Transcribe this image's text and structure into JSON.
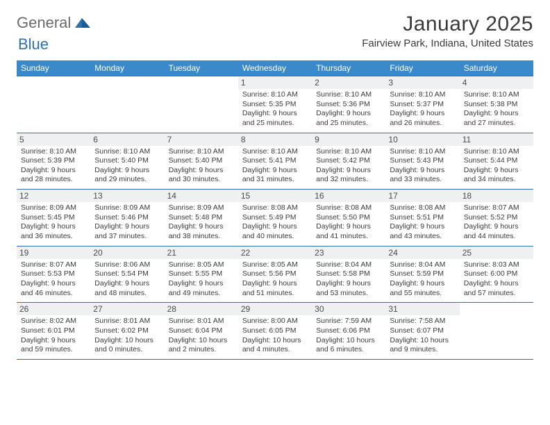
{
  "logo": {
    "text_general": "General",
    "text_blue": "Blue"
  },
  "title": "January 2025",
  "location": "Fairview Park, Indiana, United States",
  "colors": {
    "header_bg": "#3a8acb",
    "header_text": "#ffffff",
    "daynum_bg": "#eef0f2",
    "border": "#2f6fb3",
    "body_text": "#3a3a3a",
    "logo_gray": "#6b6b6b",
    "logo_blue": "#2f6fb3"
  },
  "weekdays": [
    "Sunday",
    "Monday",
    "Tuesday",
    "Wednesday",
    "Thursday",
    "Friday",
    "Saturday"
  ],
  "weeks": [
    [
      null,
      null,
      null,
      {
        "n": "1",
        "sr": "8:10 AM",
        "ss": "5:35 PM",
        "dl": "9 hours and 25 minutes."
      },
      {
        "n": "2",
        "sr": "8:10 AM",
        "ss": "5:36 PM",
        "dl": "9 hours and 25 minutes."
      },
      {
        "n": "3",
        "sr": "8:10 AM",
        "ss": "5:37 PM",
        "dl": "9 hours and 26 minutes."
      },
      {
        "n": "4",
        "sr": "8:10 AM",
        "ss": "5:38 PM",
        "dl": "9 hours and 27 minutes."
      }
    ],
    [
      {
        "n": "5",
        "sr": "8:10 AM",
        "ss": "5:39 PM",
        "dl": "9 hours and 28 minutes."
      },
      {
        "n": "6",
        "sr": "8:10 AM",
        "ss": "5:40 PM",
        "dl": "9 hours and 29 minutes."
      },
      {
        "n": "7",
        "sr": "8:10 AM",
        "ss": "5:40 PM",
        "dl": "9 hours and 30 minutes."
      },
      {
        "n": "8",
        "sr": "8:10 AM",
        "ss": "5:41 PM",
        "dl": "9 hours and 31 minutes."
      },
      {
        "n": "9",
        "sr": "8:10 AM",
        "ss": "5:42 PM",
        "dl": "9 hours and 32 minutes."
      },
      {
        "n": "10",
        "sr": "8:10 AM",
        "ss": "5:43 PM",
        "dl": "9 hours and 33 minutes."
      },
      {
        "n": "11",
        "sr": "8:10 AM",
        "ss": "5:44 PM",
        "dl": "9 hours and 34 minutes."
      }
    ],
    [
      {
        "n": "12",
        "sr": "8:09 AM",
        "ss": "5:45 PM",
        "dl": "9 hours and 36 minutes."
      },
      {
        "n": "13",
        "sr": "8:09 AM",
        "ss": "5:46 PM",
        "dl": "9 hours and 37 minutes."
      },
      {
        "n": "14",
        "sr": "8:09 AM",
        "ss": "5:48 PM",
        "dl": "9 hours and 38 minutes."
      },
      {
        "n": "15",
        "sr": "8:08 AM",
        "ss": "5:49 PM",
        "dl": "9 hours and 40 minutes."
      },
      {
        "n": "16",
        "sr": "8:08 AM",
        "ss": "5:50 PM",
        "dl": "9 hours and 41 minutes."
      },
      {
        "n": "17",
        "sr": "8:08 AM",
        "ss": "5:51 PM",
        "dl": "9 hours and 43 minutes."
      },
      {
        "n": "18",
        "sr": "8:07 AM",
        "ss": "5:52 PM",
        "dl": "9 hours and 44 minutes."
      }
    ],
    [
      {
        "n": "19",
        "sr": "8:07 AM",
        "ss": "5:53 PM",
        "dl": "9 hours and 46 minutes."
      },
      {
        "n": "20",
        "sr": "8:06 AM",
        "ss": "5:54 PM",
        "dl": "9 hours and 48 minutes."
      },
      {
        "n": "21",
        "sr": "8:05 AM",
        "ss": "5:55 PM",
        "dl": "9 hours and 49 minutes."
      },
      {
        "n": "22",
        "sr": "8:05 AM",
        "ss": "5:56 PM",
        "dl": "9 hours and 51 minutes."
      },
      {
        "n": "23",
        "sr": "8:04 AM",
        "ss": "5:58 PM",
        "dl": "9 hours and 53 minutes."
      },
      {
        "n": "24",
        "sr": "8:04 AM",
        "ss": "5:59 PM",
        "dl": "9 hours and 55 minutes."
      },
      {
        "n": "25",
        "sr": "8:03 AM",
        "ss": "6:00 PM",
        "dl": "9 hours and 57 minutes."
      }
    ],
    [
      {
        "n": "26",
        "sr": "8:02 AM",
        "ss": "6:01 PM",
        "dl": "9 hours and 59 minutes."
      },
      {
        "n": "27",
        "sr": "8:01 AM",
        "ss": "6:02 PM",
        "dl": "10 hours and 0 minutes."
      },
      {
        "n": "28",
        "sr": "8:01 AM",
        "ss": "6:04 PM",
        "dl": "10 hours and 2 minutes."
      },
      {
        "n": "29",
        "sr": "8:00 AM",
        "ss": "6:05 PM",
        "dl": "10 hours and 4 minutes."
      },
      {
        "n": "30",
        "sr": "7:59 AM",
        "ss": "6:06 PM",
        "dl": "10 hours and 6 minutes."
      },
      {
        "n": "31",
        "sr": "7:58 AM",
        "ss": "6:07 PM",
        "dl": "10 hours and 9 minutes."
      },
      null
    ]
  ],
  "labels": {
    "sunrise": "Sunrise:",
    "sunset": "Sunset:",
    "daylight": "Daylight:"
  }
}
